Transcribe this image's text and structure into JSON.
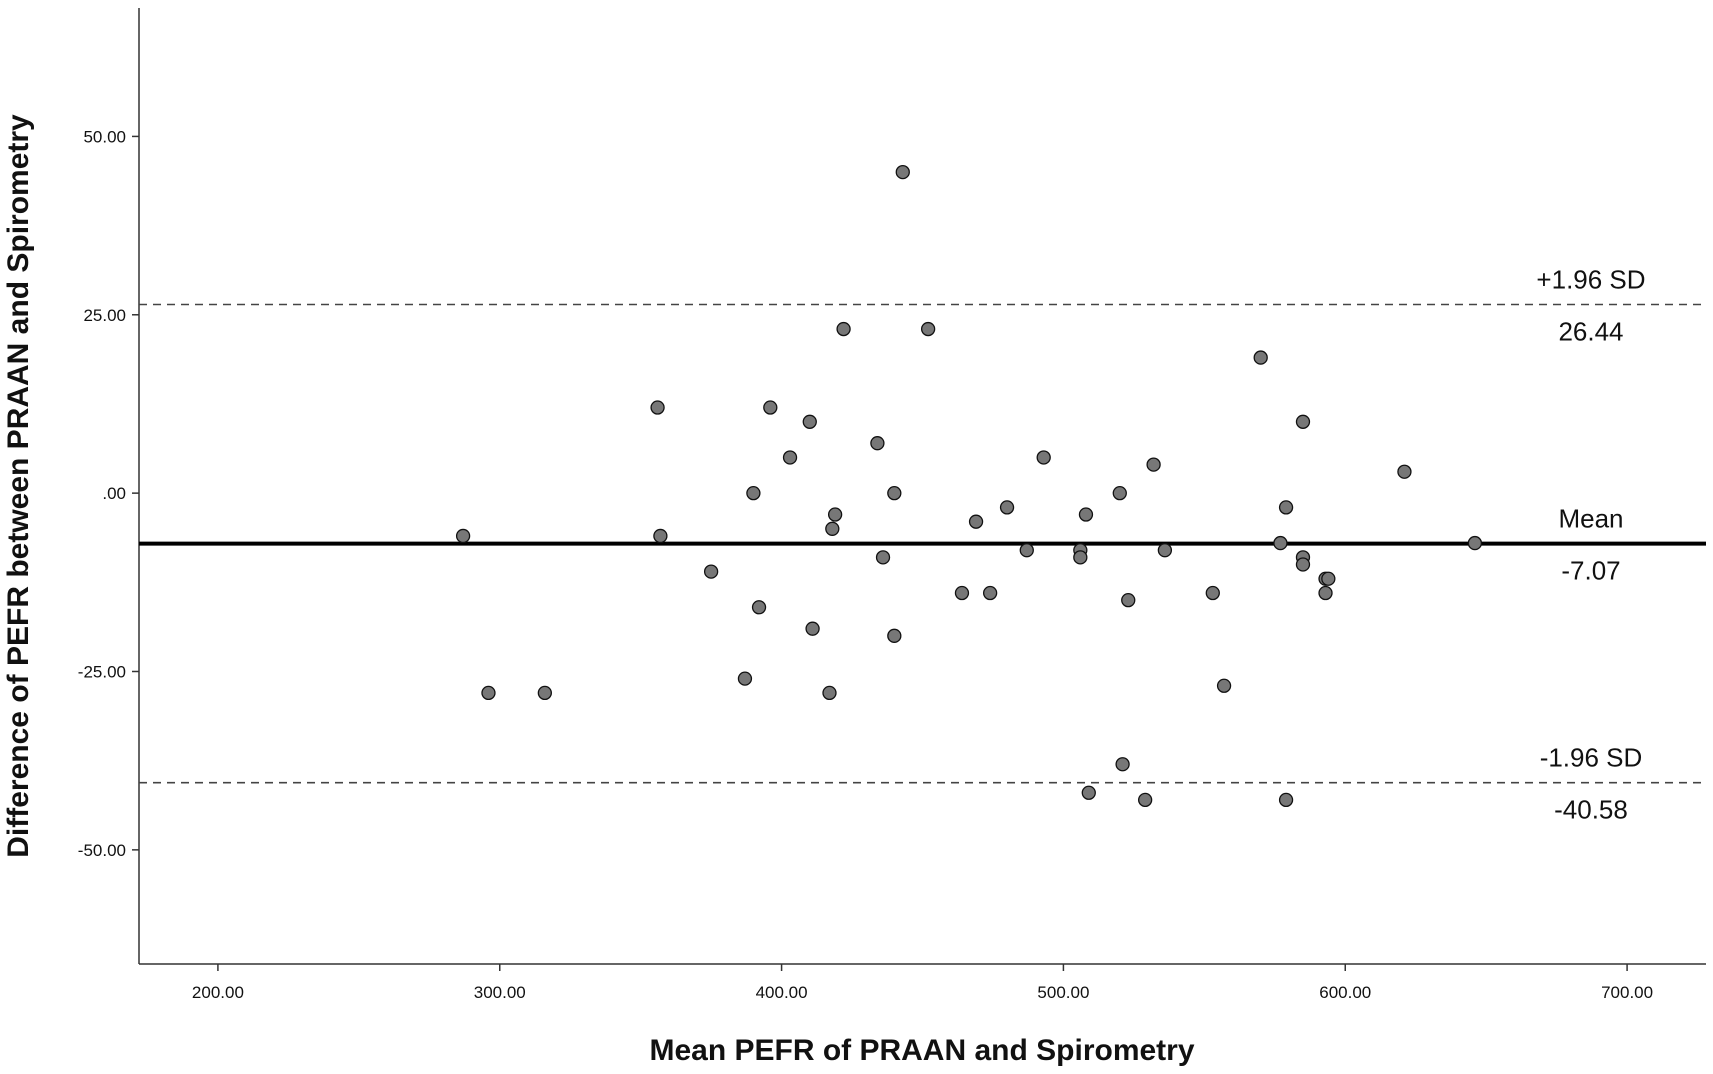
{
  "chart_data": {
    "type": "scatter",
    "xlabel": "Mean PEFR of PRAAN and Spirometry",
    "ylabel": "Difference of PEFR between PRAAN and Spirometry",
    "xlim": [
      172,
      728
    ],
    "ylim": [
      -66,
      68
    ],
    "x_ticks": [
      200,
      300,
      400,
      500,
      600,
      700
    ],
    "x_tick_labels": [
      "200.00",
      "300.00",
      "400.00",
      "500.00",
      "600.00",
      "700.00"
    ],
    "y_ticks": [
      50,
      25,
      0,
      -25,
      -50
    ],
    "y_tick_labels": [
      "50.00",
      "25.00",
      ".00",
      "-25.00",
      "-50.00"
    ],
    "grid": false,
    "point_color": "#777777",
    "point_edge_color": "#111111",
    "reference_lines": [
      {
        "key": "upper",
        "value": 26.44,
        "style": "dashed",
        "label": "+1.96 SD",
        "value_label": "26.44"
      },
      {
        "key": "mean",
        "value": -7.07,
        "style": "solid",
        "label": "Mean",
        "value_label": "-7.07"
      },
      {
        "key": "lower",
        "value": -40.58,
        "style": "dashed",
        "label": "-1.96 SD",
        "value_label": "-40.58"
      }
    ],
    "points": [
      {
        "x": 287,
        "y": -6
      },
      {
        "x": 296,
        "y": -28
      },
      {
        "x": 316,
        "y": -28
      },
      {
        "x": 356,
        "y": 12
      },
      {
        "x": 357,
        "y": -6
      },
      {
        "x": 375,
        "y": -11
      },
      {
        "x": 387,
        "y": -26
      },
      {
        "x": 390,
        "y": 0
      },
      {
        "x": 392,
        "y": -16
      },
      {
        "x": 396,
        "y": 12
      },
      {
        "x": 403,
        "y": 5
      },
      {
        "x": 410,
        "y": 10
      },
      {
        "x": 411,
        "y": -19
      },
      {
        "x": 417,
        "y": -28
      },
      {
        "x": 418,
        "y": -5
      },
      {
        "x": 419,
        "y": -3
      },
      {
        "x": 422,
        "y": 23
      },
      {
        "x": 434,
        "y": 7
      },
      {
        "x": 436,
        "y": -9
      },
      {
        "x": 440,
        "y": 0
      },
      {
        "x": 440,
        "y": -20
      },
      {
        "x": 443,
        "y": 45
      },
      {
        "x": 452,
        "y": 23
      },
      {
        "x": 464,
        "y": -14
      },
      {
        "x": 469,
        "y": -4
      },
      {
        "x": 474,
        "y": -14
      },
      {
        "x": 480,
        "y": -2
      },
      {
        "x": 487,
        "y": -8
      },
      {
        "x": 493,
        "y": 5
      },
      {
        "x": 506,
        "y": -8
      },
      {
        "x": 506,
        "y": -9
      },
      {
        "x": 508,
        "y": -3
      },
      {
        "x": 509,
        "y": -42
      },
      {
        "x": 520,
        "y": 0
      },
      {
        "x": 521,
        "y": -38
      },
      {
        "x": 523,
        "y": -15
      },
      {
        "x": 529,
        "y": -43
      },
      {
        "x": 532,
        "y": 4
      },
      {
        "x": 536,
        "y": -8
      },
      {
        "x": 553,
        "y": -14
      },
      {
        "x": 557,
        "y": -27
      },
      {
        "x": 570,
        "y": 19
      },
      {
        "x": 577,
        "y": -7
      },
      {
        "x": 579,
        "y": -2
      },
      {
        "x": 579,
        "y": -43
      },
      {
        "x": 585,
        "y": 10
      },
      {
        "x": 585,
        "y": -9
      },
      {
        "x": 585,
        "y": -10
      },
      {
        "x": 593,
        "y": -12
      },
      {
        "x": 593,
        "y": -14
      },
      {
        "x": 594,
        "y": -12
      },
      {
        "x": 621,
        "y": 3
      },
      {
        "x": 646,
        "y": -7
      }
    ]
  }
}
